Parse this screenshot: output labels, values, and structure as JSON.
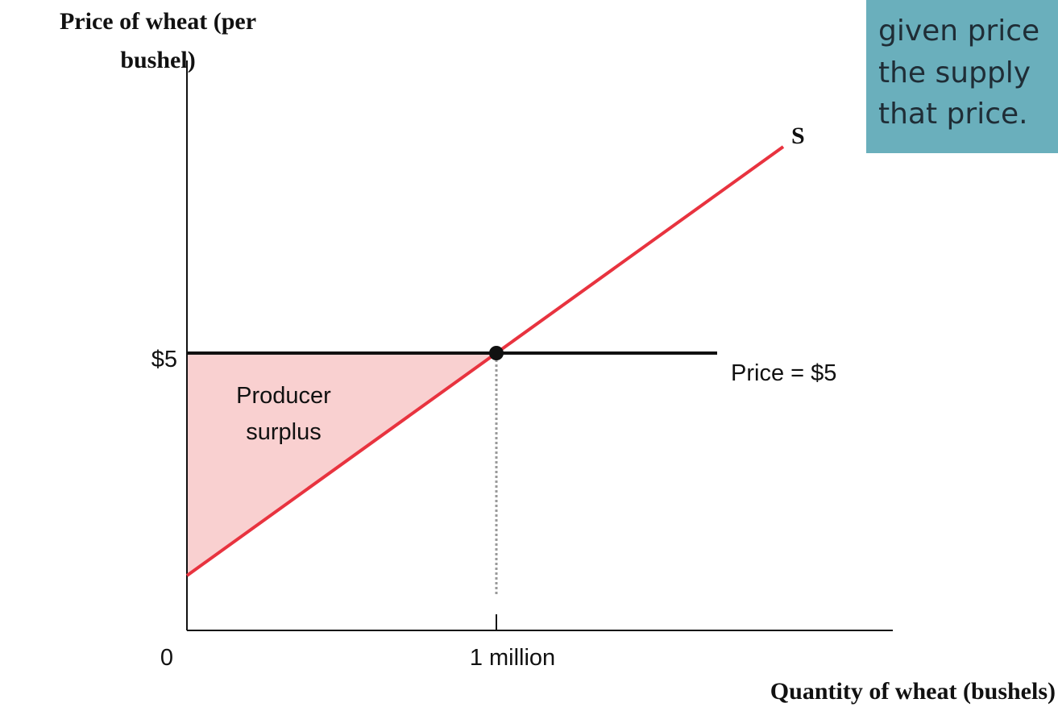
{
  "y_axis_label": [
    "Price of wheat (per",
    "bushel)"
  ],
  "x_axis_label": "Quantity of wheat (bushels)",
  "origin_label": "0",
  "price_tick_label": "$5",
  "quantity_tick_label": "1 million",
  "price_line_label": "Price = $5",
  "supply_label": "S",
  "area_label": [
    "Producer",
    "surplus"
  ],
  "callout": [
    "given price",
    "the supply",
    "that price."
  ]
}
